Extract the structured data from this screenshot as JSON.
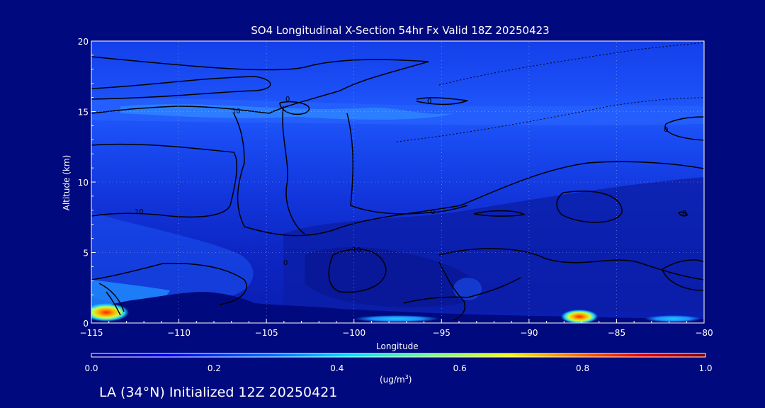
{
  "chart_data": {
    "type": "heatmap",
    "title": "SO4 Longitudinal X-Section 54hr  Fx Valid 18Z 20250423",
    "xlabel": "Longitude",
    "ylabel": "Altitude (km)",
    "xlim": [
      -115,
      -80
    ],
    "ylim": [
      0,
      20
    ],
    "xticks": [
      "-115",
      "-110",
      "-105",
      "-100",
      "-95",
      "-90",
      "-85",
      "-80"
    ],
    "yticks": [
      "0",
      "5",
      "10",
      "15",
      "20"
    ],
    "grid": true,
    "colorbar": {
      "min": 0.0,
      "max": 1.0,
      "ticks": [
        "0.0",
        "0.2",
        "0.4",
        "0.6",
        "0.8",
        "1.0"
      ],
      "unit": "(ug/m",
      "unit_sup": "3",
      "unit_close": ")"
    },
    "contour_labels": [
      "0",
      "10",
      "10",
      "0",
      "0",
      "10",
      "0",
      "0",
      "0"
    ],
    "hotspots": [
      {
        "lon": -114.3,
        "alt": 0.6,
        "value": 0.95
      },
      {
        "lon": -87.2,
        "alt": 0.2,
        "value": 0.85
      },
      {
        "lon": -98.0,
        "alt": 0.1,
        "value": 0.35
      }
    ]
  },
  "footer": "LA (34°N) Initialized 12Z 20250421"
}
